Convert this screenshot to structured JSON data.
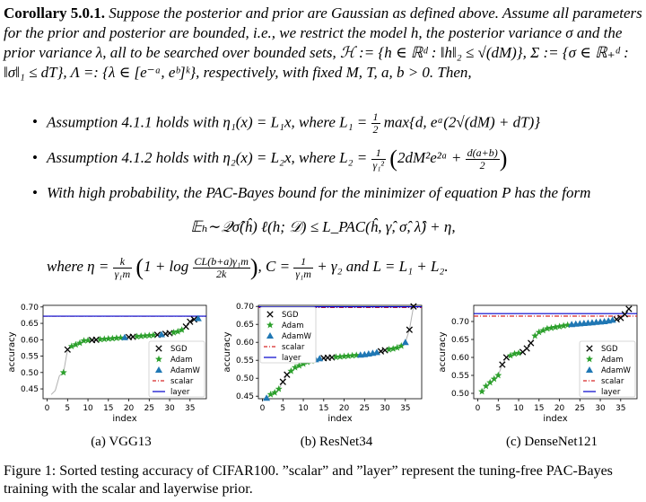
{
  "corollary": {
    "label": "Corollary 5.0.1.",
    "text": "Suppose the posterior and prior are Gaussian as defined above. Assume all parameters for the prior and posterior are bounded, i.e., we restrict the model h, the posterior variance σ and the prior variance λ, all to be searched over bounded sets, ℋ := {h ∈ ℝᵈ : ‖h‖₂ ≤ √(dM)}, Σ := {σ ∈ ℝ₊ᵈ : ‖σ‖₁ ≤ dT}, Λ =: {λ ∈ [e⁻ᵃ, eᵇ]ᵏ}, respectively, with fixed M, T, a, b > 0. Then,"
  },
  "bullets": [
    {
      "pre": "Assumption 4.1.1 holds with η₁(x) = L₁x, where L₁ =",
      "num": "1",
      "den": "2",
      "post": "max{d, eᵃ(2√(dM) + dT)}"
    },
    {
      "pre": "Assumption 4.1.2 holds with η₂(x) = L₂x, where L₂ =",
      "num": "1",
      "den": "γ₁²",
      "post": "2dM²e²ᵃ +",
      "num2": "d(a+b)",
      "den2": "2"
    },
    {
      "pre": "With high probability, the PAC-Bayes bound for the minimizer of  equation P has the form"
    }
  ],
  "bound": "𝔼ₕ∼𝒬σ̂(ĥ) ℓ(h; 𝒟) ≤ L_PAC(ĥ, γ̂, σ̂, λ̂) + η,",
  "where_line": {
    "a": "where η =",
    "f1n": "k",
    "f1d": "γ₁m",
    "b": "1 + log",
    "f2n": "CL(b+a)γ₁m",
    "f2d": "2k",
    "c": ", C =",
    "f3n": "1",
    "f3d": "γ₁m",
    "d": "+ γ₂ and L = L₁ + L₂."
  },
  "subcaptions": [
    "(a) VGG13",
    "(b) ResNet34",
    "(c) DenseNet121"
  ],
  "figure_caption": "Figure 1: Sorted testing accuracy of CIFAR100. ”scalar” and ”layer” represent the tuning-free PAC-Bayes training with the scalar and layerwise prior.",
  "colors": {
    "sgd": "#000000",
    "adam": "#2ca02c",
    "adamw": "#1f77b4",
    "scalar": "#d62728",
    "layer": "#0000cc",
    "line": "#b0b0b0"
  },
  "chart_data": [
    {
      "type": "scatter",
      "title": "",
      "xlabel": "index",
      "ylabel": "accuracy",
      "xlim": [
        -1,
        39
      ],
      "ylim": [
        0.42,
        0.705
      ],
      "xticks": [
        "0",
        "5",
        "10",
        "15",
        "20",
        "25",
        "30",
        "35"
      ],
      "yticks": [
        "0.45",
        "0.50",
        "0.55",
        "0.60",
        "0.65",
        "0.70"
      ],
      "ytick_values": [
        0.45,
        0.5,
        0.55,
        0.6,
        0.65,
        0.7
      ],
      "legend": [
        "SGD",
        "Adam",
        "AdamW",
        "scalar",
        "layer"
      ],
      "legend_position": "lower-right",
      "scalar_line": 0.672,
      "layer_line": 0.672,
      "sorted_values": [
        0.433,
        0.445,
        0.49,
        0.5,
        0.57,
        0.58,
        0.585,
        0.59,
        0.597,
        0.598,
        0.599,
        0.6,
        0.601,
        0.602,
        0.603,
        0.604,
        0.605,
        0.606,
        0.607,
        0.608,
        0.609,
        0.61,
        0.611,
        0.612,
        0.613,
        0.614,
        0.615,
        0.616,
        0.618,
        0.62,
        0.622,
        0.625,
        0.63,
        0.64,
        0.655,
        0.662,
        0.665
      ],
      "series": [
        {
          "name": "SGD",
          "x": [
            5,
            11,
            12,
            20,
            21,
            27,
            29,
            30,
            34,
            35,
            36
          ],
          "marker": "x"
        },
        {
          "name": "Adam",
          "x": [
            4,
            6,
            7,
            8,
            9,
            10,
            13,
            14,
            15,
            16,
            17,
            18,
            22,
            23,
            24,
            25,
            26,
            31,
            32,
            33
          ],
          "marker": "star"
        },
        {
          "name": "AdamW",
          "x": [
            19,
            28,
            37
          ],
          "marker": "triangle"
        }
      ]
    },
    {
      "type": "scatter",
      "title": "",
      "xlabel": "index",
      "ylabel": "accuracy",
      "xlim": [
        -1,
        39
      ],
      "ylim": [
        0.443,
        0.703
      ],
      "xticks": [
        "0",
        "5",
        "10",
        "15",
        "20",
        "25",
        "30",
        "35"
      ],
      "yticks": [
        "0.45",
        "0.50",
        "0.55",
        "0.60",
        "0.65",
        "0.70"
      ],
      "ytick_values": [
        0.45,
        0.5,
        0.55,
        0.6,
        0.65,
        0.7
      ],
      "legend": [
        "SGD",
        "Adam",
        "AdamW",
        "scalar",
        "layer"
      ],
      "legend_position": "upper-left",
      "scalar_line": 0.697,
      "layer_line": 0.699,
      "sorted_values": [
        0.445,
        0.455,
        0.46,
        0.47,
        0.49,
        0.51,
        0.52,
        0.53,
        0.535,
        0.54,
        0.545,
        0.548,
        0.552,
        0.555,
        0.556,
        0.557,
        0.558,
        0.559,
        0.56,
        0.561,
        0.562,
        0.563,
        0.564,
        0.565,
        0.566,
        0.568,
        0.57,
        0.572,
        0.575,
        0.578,
        0.58,
        0.582,
        0.585,
        0.59,
        0.6,
        0.635,
        0.7
      ],
      "series": [
        {
          "name": "SGD",
          "x": [
            5,
            6,
            15,
            16,
            17,
            29,
            30,
            36,
            37
          ],
          "marker": "x"
        },
        {
          "name": "Adam",
          "x": [
            2,
            3,
            4,
            7,
            8,
            9,
            10,
            11,
            12,
            18,
            19,
            20,
            21,
            22,
            23,
            31,
            32,
            33,
            34
          ],
          "marker": "star"
        },
        {
          "name": "AdamW",
          "x": [
            1,
            13,
            14,
            24,
            25,
            26,
            27,
            28,
            35
          ],
          "marker": "triangle"
        }
      ]
    },
    {
      "type": "scatter",
      "title": "",
      "xlabel": "index",
      "ylabel": "accuracy",
      "xlim": [
        -1,
        39
      ],
      "ylim": [
        0.485,
        0.745
      ],
      "xticks": [
        "0",
        "5",
        "10",
        "15",
        "20",
        "25",
        "30",
        "35"
      ],
      "yticks": [
        "0.50",
        "0.55",
        "0.60",
        "0.65",
        "0.70"
      ],
      "ytick_values": [
        0.5,
        0.55,
        0.6,
        0.65,
        0.7
      ],
      "legend": [
        "SGD",
        "Adam",
        "AdamW",
        "scalar",
        "layer"
      ],
      "legend_position": "lower-right",
      "scalar_line": 0.715,
      "layer_line": 0.722,
      "sorted_values": [
        0.505,
        0.52,
        0.53,
        0.54,
        0.55,
        0.58,
        0.6,
        0.605,
        0.61,
        0.612,
        0.615,
        0.625,
        0.64,
        0.66,
        0.67,
        0.675,
        0.68,
        0.682,
        0.684,
        0.686,
        0.688,
        0.69,
        0.692,
        0.693,
        0.694,
        0.695,
        0.696,
        0.697,
        0.698,
        0.699,
        0.7,
        0.702,
        0.704,
        0.706,
        0.71,
        0.72,
        0.735
      ],
      "series": [
        {
          "name": "SGD",
          "x": [
            6,
            7,
            11,
            12,
            13,
            34,
            35,
            36,
            37
          ],
          "marker": "x"
        },
        {
          "name": "Adam",
          "x": [
            1,
            2,
            3,
            4,
            5,
            8,
            9,
            10,
            14,
            15,
            16,
            17,
            18,
            19,
            20,
            21,
            22
          ],
          "marker": "star"
        },
        {
          "name": "AdamW",
          "x": [
            23,
            24,
            25,
            26,
            27,
            28,
            29,
            30,
            31,
            32,
            33
          ],
          "marker": "triangle"
        }
      ]
    }
  ]
}
